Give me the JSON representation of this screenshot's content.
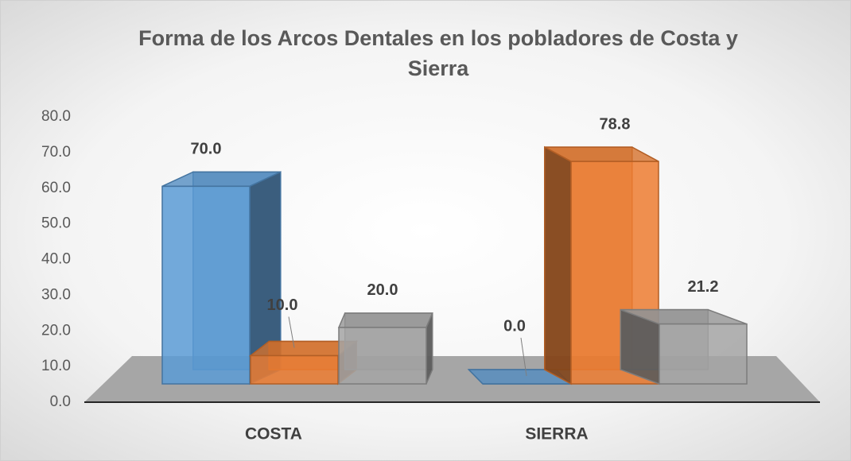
{
  "chart_data": {
    "type": "bar3d",
    "title": "Forma de los Arcos Dentales en los pobladores de Costa y Sierra",
    "categories": [
      "COSTA",
      "SIERRA"
    ],
    "series": [
      {
        "color": "#5b9bd5",
        "values": [
          70.0,
          0.0
        ],
        "value_labels": [
          "70.0",
          "0.0"
        ]
      },
      {
        "color": "#ed7d31",
        "values": [
          10.0,
          78.8
        ],
        "value_labels": [
          "10.0",
          "78.8"
        ]
      },
      {
        "color": "#a5a5a5",
        "values": [
          20.0,
          21.2
        ],
        "value_labels": [
          "20.0",
          "21.2"
        ]
      }
    ],
    "ylim": [
      0,
      80
    ],
    "yticks": [
      {
        "value": 0,
        "label": "0.0"
      },
      {
        "value": 10,
        "label": "10.0"
      },
      {
        "value": 20,
        "label": "20.0"
      },
      {
        "value": 30,
        "label": "30.0"
      },
      {
        "value": 40,
        "label": "40.0"
      },
      {
        "value": 50,
        "label": "50.0"
      },
      {
        "value": 60,
        "label": "60.0"
      },
      {
        "value": 70,
        "label": "70.0"
      },
      {
        "value": 80,
        "label": "80.0"
      }
    ]
  }
}
